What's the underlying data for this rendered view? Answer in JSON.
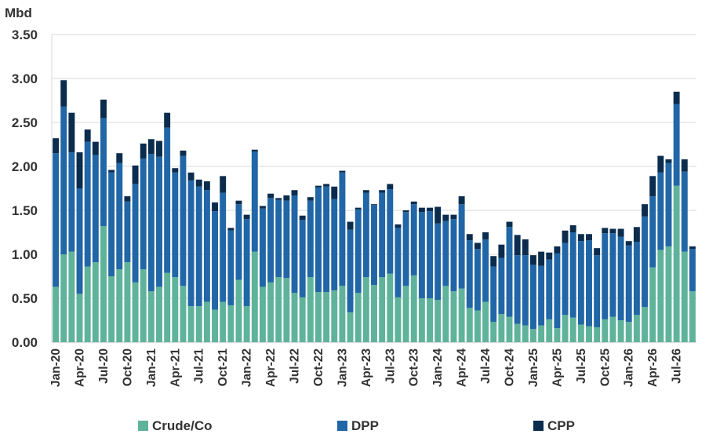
{
  "chart_data": {
    "type": "bar",
    "stacked": true,
    "unit_label": "Mbd",
    "ylim": [
      0,
      3.5
    ],
    "yticks": [
      "0.00",
      "0.50",
      "1.00",
      "1.50",
      "2.00",
      "2.50",
      "3.00",
      "3.50"
    ],
    "grid": true,
    "legend_position": "bottom",
    "x_tick_labels": [
      "Jan-20",
      "Apr-20",
      "Jul-20",
      "Oct-20",
      "Jan-21",
      "Apr-21",
      "Jul-21",
      "Oct-21",
      "Jan-22",
      "Apr-22",
      "Jul-22",
      "Oct-22",
      "Jan-23",
      "Apr-23",
      "Jul-23",
      "Oct-23",
      "Jan-24",
      "Apr-24",
      "Jul-24",
      "Oct-24",
      "Jan-25",
      "Apr-25",
      "Jul-25",
      "Oct-25",
      "Jan-26",
      "Apr-26",
      "Jul-26"
    ],
    "colors": {
      "Crude/Co": "#5fb39a",
      "DPP": "#2166a6",
      "CPP": "#0b2c4d"
    },
    "series": [
      {
        "name": "Crude/Co",
        "values": [
          0.63,
          1.0,
          1.03,
          0.55,
          0.86,
          0.91,
          1.32,
          0.75,
          0.83,
          0.91,
          0.68,
          0.83,
          0.58,
          0.63,
          0.79,
          0.74,
          0.64,
          0.41,
          0.41,
          0.46,
          0.37,
          0.46,
          0.42,
          0.71,
          0.41,
          1.03,
          0.63,
          0.68,
          0.74,
          0.73,
          0.56,
          0.51,
          0.74,
          0.57,
          0.57,
          0.59,
          0.64,
          0.34,
          0.56,
          0.74,
          0.65,
          0.74,
          0.78,
          0.51,
          0.64,
          0.76,
          0.5,
          0.5,
          0.48,
          0.64,
          0.58,
          0.61,
          0.39,
          0.36,
          0.46,
          0.23,
          0.32,
          0.29,
          0.21,
          0.19,
          0.15,
          0.19,
          0.26,
          0.16,
          0.31,
          0.28,
          0.2,
          0.18,
          0.17,
          0.26,
          0.29,
          0.25,
          0.23,
          0.31,
          0.4,
          0.85,
          1.05,
          1.09,
          1.78,
          1.03,
          0.58
        ]
      },
      {
        "name": "DPP",
        "values": [
          1.52,
          1.68,
          1.13,
          1.2,
          1.42,
          1.22,
          1.23,
          1.18,
          1.21,
          0.69,
          1.12,
          1.26,
          1.56,
          1.48,
          1.65,
          1.19,
          1.48,
          1.43,
          1.36,
          1.27,
          1.12,
          1.24,
          0.85,
          0.86,
          0.99,
          1.14,
          0.89,
          0.96,
          0.88,
          0.88,
          1.11,
          0.88,
          0.87,
          1.19,
          1.2,
          1.04,
          1.29,
          0.94,
          0.95,
          0.96,
          0.91,
          0.96,
          0.96,
          0.79,
          0.84,
          0.81,
          0.98,
          0.99,
          0.87,
          0.74,
          0.82,
          0.96,
          0.77,
          0.7,
          0.71,
          0.63,
          0.64,
          1.02,
          0.78,
          0.8,
          0.73,
          0.68,
          0.68,
          0.85,
          0.82,
          0.97,
          0.95,
          0.98,
          0.82,
          0.98,
          0.95,
          0.95,
          0.87,
          0.83,
          1.03,
          0.81,
          0.88,
          0.95,
          0.93,
          0.91,
          0.48
        ]
      },
      {
        "name": "CPP",
        "values": [
          0.17,
          0.3,
          0.45,
          0.41,
          0.14,
          0.15,
          0.21,
          0.03,
          0.11,
          0.06,
          0.21,
          0.17,
          0.17,
          0.18,
          0.17,
          0.05,
          0.06,
          0.09,
          0.08,
          0.1,
          0.1,
          0.19,
          0.03,
          0.04,
          0.05,
          0.02,
          0.03,
          0.05,
          0.02,
          0.06,
          0.06,
          0.05,
          0.04,
          0.02,
          0.03,
          0.14,
          0.02,
          0.09,
          0.02,
          0.03,
          0.01,
          0.03,
          0.06,
          0.04,
          0.02,
          0.03,
          0.05,
          0.04,
          0.19,
          0.07,
          0.05,
          0.09,
          0.07,
          0.07,
          0.08,
          0.12,
          0.15,
          0.06,
          0.23,
          0.18,
          0.11,
          0.16,
          0.08,
          0.08,
          0.14,
          0.08,
          0.08,
          0.07,
          0.08,
          0.06,
          0.05,
          0.09,
          0.05,
          0.17,
          0.14,
          0.23,
          0.19,
          0.04,
          0.14,
          0.14,
          0.03
        ]
      }
    ]
  }
}
